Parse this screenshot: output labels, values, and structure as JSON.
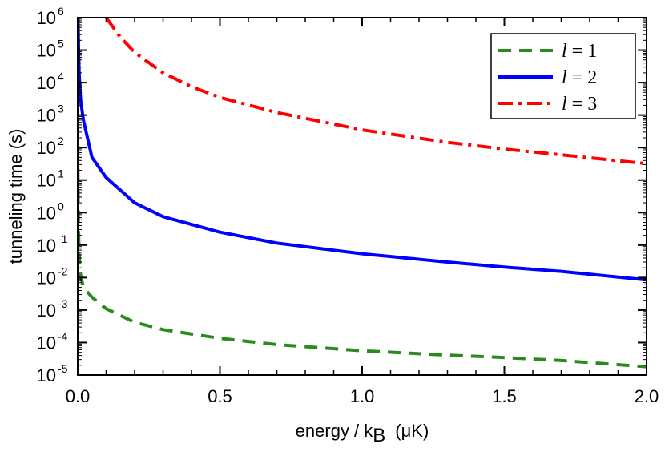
{
  "chart_data": {
    "type": "line",
    "title": "",
    "xlabel": "energy / k",
    "xlabel_sub": "B",
    "xlabel_unit": "(μK)",
    "ylabel": "tunneling time (s)",
    "xlim": [
      0,
      2.0
    ],
    "ylim_log10": [
      -5,
      6
    ],
    "yscale": "log",
    "grid": false,
    "legend_position": "top-right",
    "x_tick_labels": [
      "0.0",
      "0.5",
      "1.0",
      "1.5",
      "2.0"
    ],
    "x_ticks": [
      0,
      0.5,
      1.0,
      1.5,
      2.0
    ],
    "y_tick_base": "10",
    "y_tick_exponents": [
      "-5",
      "-4",
      "-3",
      "-2",
      "-1",
      "0",
      "1",
      "2",
      "3",
      "4",
      "5",
      "6"
    ],
    "series": [
      {
        "name_var": "l",
        "name_rest": " = 1",
        "color": "#2a8a1e",
        "style": "dashed",
        "x": [
          0.0002,
          0.0005,
          0.001,
          0.002,
          0.005,
          0.01,
          0.02,
          0.05,
          0.1,
          0.2,
          0.3,
          0.5,
          0.7,
          1.0,
          1.3,
          1.5,
          1.7,
          2.0
        ],
        "y": [
          100,
          40,
          10,
          0.5,
          0.05,
          0.012,
          0.005,
          0.0025,
          0.0011,
          0.00042,
          0.00025,
          0.000135,
          8.65e-05,
          5.6e-05,
          4.1e-05,
          3.45e-05,
          2.8e-05,
          1.8e-05
        ]
      },
      {
        "name_var": "l",
        "name_rest": " = 2",
        "color": "#0000ff",
        "style": "solid",
        "x": [
          0.001,
          0.003,
          0.005,
          0.01,
          0.02,
          0.05,
          0.1,
          0.2,
          0.3,
          0.5,
          0.7,
          1.0,
          1.3,
          1.5,
          1.7,
          2.0
        ],
        "y": [
          1000000,
          100000,
          20000,
          3000,
          700,
          50,
          12,
          2.0,
          0.75,
          0.25,
          0.115,
          0.054,
          0.03,
          0.021,
          0.0155,
          0.0085
        ]
      },
      {
        "name_var": "l",
        "name_rest": " = 3",
        "color": "#ff0000",
        "style": "dashdot",
        "x": [
          0.1,
          0.15,
          0.2,
          0.3,
          0.4,
          0.5,
          0.7,
          1.0,
          1.3,
          1.5,
          1.7,
          2.0
        ],
        "y": [
          1000000,
          250000,
          85000,
          20000,
          7500,
          3500,
          1200,
          350,
          145,
          90,
          60,
          32
        ]
      }
    ]
  }
}
